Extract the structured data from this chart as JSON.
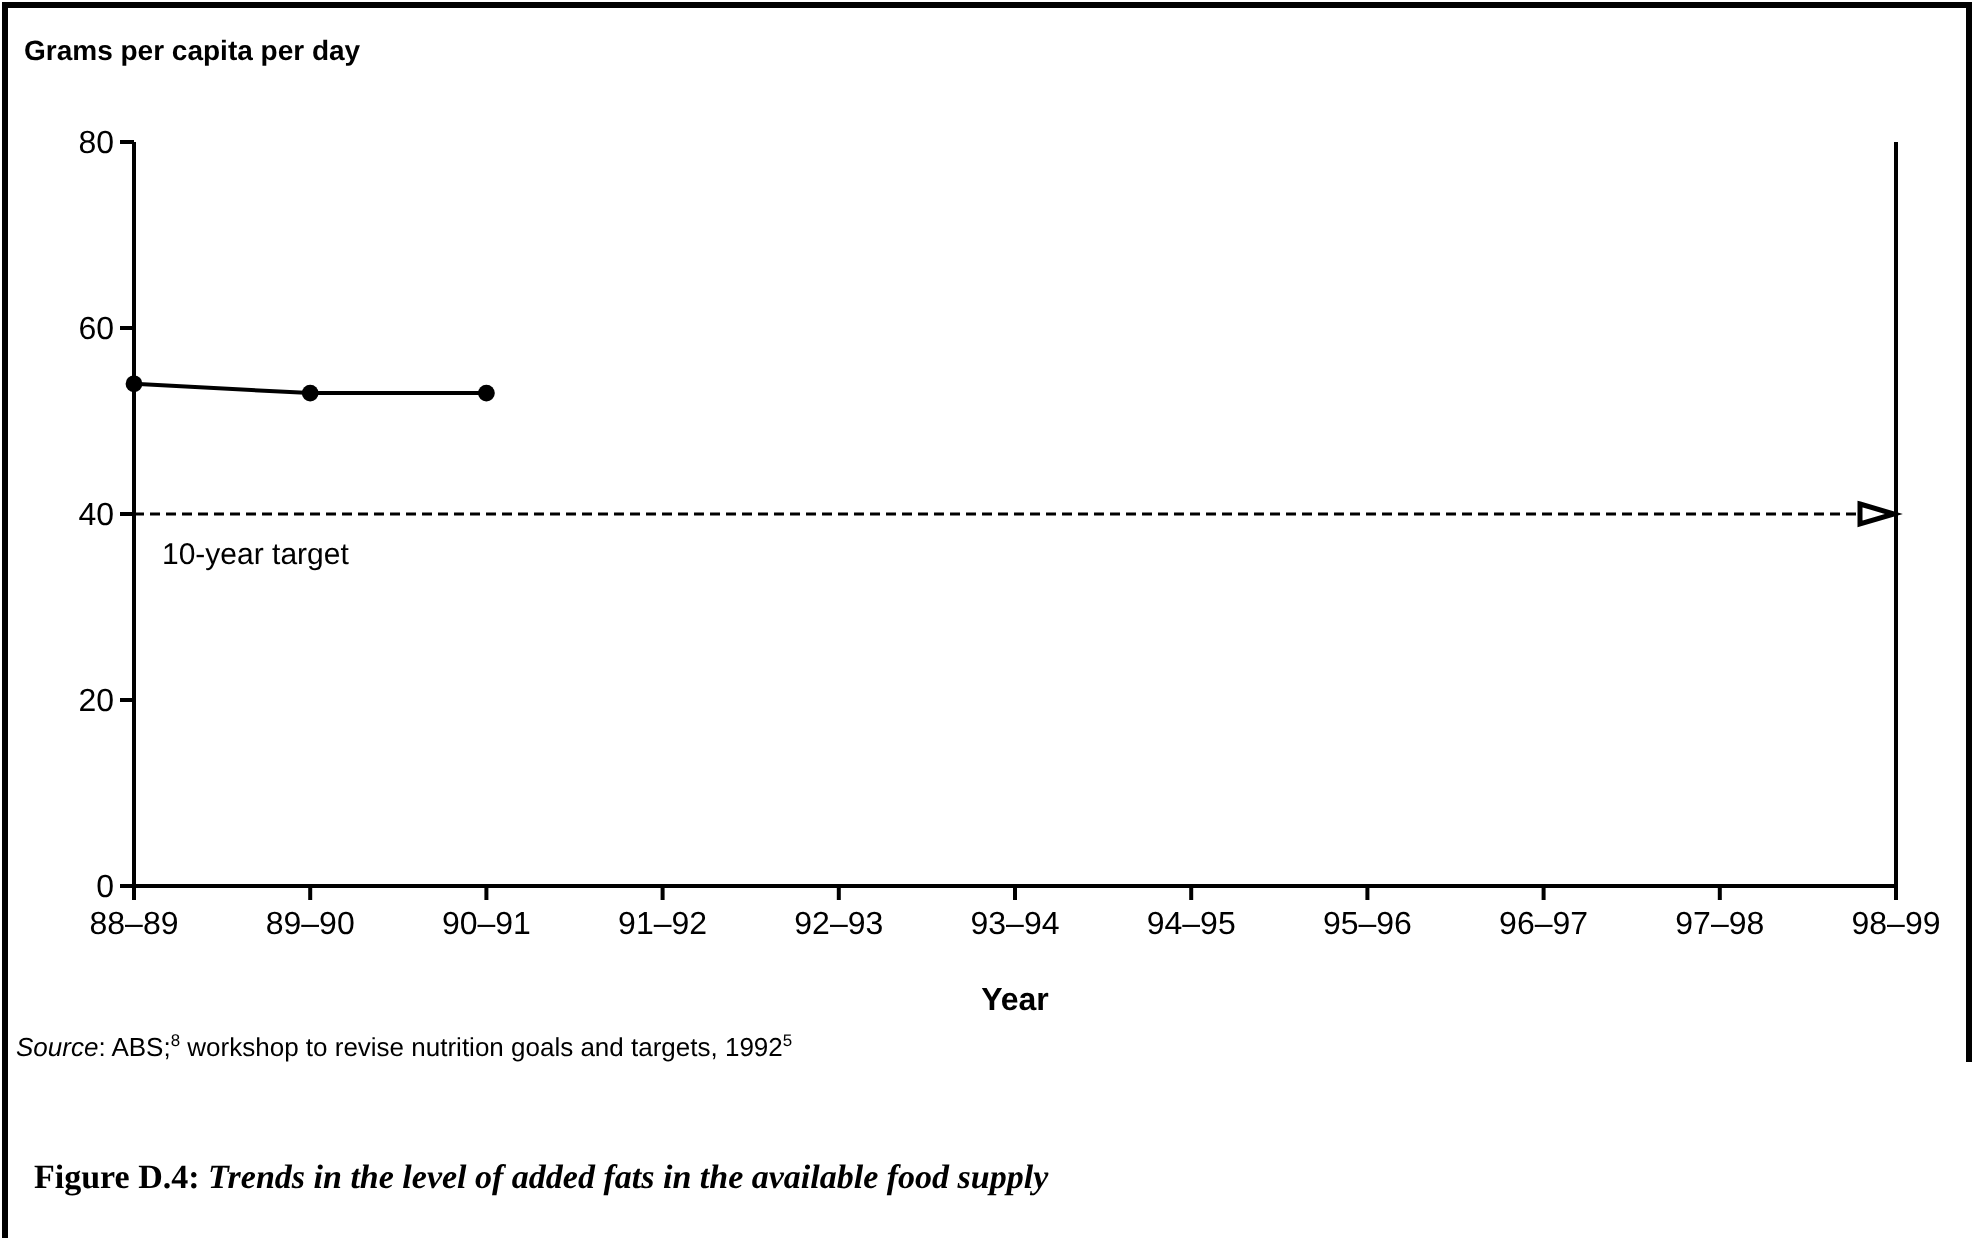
{
  "chart_data": {
    "type": "line",
    "title": "Figure D.4: Trends in the level of added fats in the available food supply",
    "xlabel": "Year",
    "ylabel": "Grams per capita per day",
    "categories": [
      "88–89",
      "89–90",
      "90–91",
      "91–92",
      "92–93",
      "93–94",
      "94–95",
      "95–96",
      "96–97",
      "97–98",
      "98–99"
    ],
    "series": [
      {
        "color": "#000000",
        "values": [
          54,
          53,
          53,
          null,
          null,
          null,
          null,
          null,
          null,
          null,
          null
        ]
      }
    ],
    "ylim": [
      0,
      80
    ],
    "yticks": [
      0,
      20,
      40,
      60,
      80
    ],
    "grid": false,
    "marker": "circle",
    "line_style": "solid",
    "ref_lines": [
      {
        "axis": "y",
        "value": 40,
        "label": "10-year target",
        "color": "#000000",
        "line_style": "dashed"
      }
    ],
    "annotations": [
      "Source: ABS;$^{8}$ workshop to revise nutrition goals and targets, 1992$^{5}$"
    ]
  }
}
